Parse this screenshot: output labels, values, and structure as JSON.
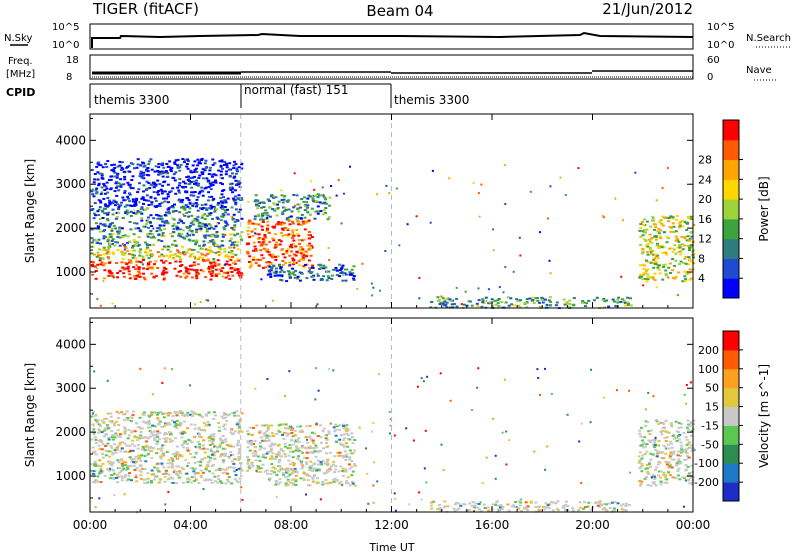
{
  "header": {
    "title_left": "TIGER (fitACF)",
    "title_center": "Beam 04",
    "title_right": "21/Jun/2012"
  },
  "panels": {
    "nsky_label": "N.Sky",
    "nsky_ticks": [
      "10^5",
      "10^0"
    ],
    "nsearch_label": "N.Search",
    "nsearch_ticks": [
      "10^5",
      "10^0"
    ],
    "freq_label": "Freq.",
    "freq_unit": "[MHz]",
    "freq_ticks": [
      "18",
      "8"
    ],
    "nave_label": "Nave",
    "nave_ticks": [
      "60",
      "0"
    ],
    "cpid_label": "CPID",
    "cpid_segments": [
      {
        "label": "themis 3300",
        "start": 0,
        "end": 6
      },
      {
        "label": "normal (fast) 151",
        "start": 6,
        "end": 12
      },
      {
        "label": "themis 3300",
        "start": 12,
        "end": 24
      }
    ]
  },
  "chart_data": [
    {
      "type": "heatmap",
      "title": "",
      "ylabel": "Slant Range [km]",
      "xlabel": "Time UT",
      "xlim": [
        0,
        24
      ],
      "ylim": [
        180,
        4600
      ],
      "x_ticks": [
        "00:00",
        "04:00",
        "08:00",
        "12:00",
        "16:00",
        "20:00",
        "00:00"
      ],
      "x_tick_values": [
        0,
        4,
        8,
        12,
        16,
        20,
        24
      ],
      "y_ticks": [
        1000,
        2000,
        3000,
        4000
      ],
      "colorbar": {
        "label": "Power [dB]",
        "ticks": [
          "4",
          "8",
          "12",
          "16",
          "20",
          "24",
          "28"
        ],
        "colors": [
          "#0000ff",
          "#1e4bd2",
          "#2d7d7d",
          "#3ca43c",
          "#a0d23c",
          "#ffd700",
          "#ffa500",
          "#ff5a00",
          "#ff0000"
        ]
      },
      "regions": [
        {
          "t0": 0,
          "t1": 6,
          "r0": 850,
          "r1": 1300,
          "level": 0.95
        },
        {
          "t0": 0,
          "t1": 6,
          "r0": 1300,
          "r1": 1600,
          "level": 0.6
        },
        {
          "t0": 0,
          "t1": 6,
          "r0": 1600,
          "r1": 2000,
          "level": 0.35
        },
        {
          "t0": 0,
          "t1": 6,
          "r0": 2000,
          "r1": 2500,
          "level": 0.25
        },
        {
          "t0": 0,
          "t1": 6,
          "r0": 2500,
          "r1": 3600,
          "level": 0.05
        },
        {
          "t0": 6.2,
          "t1": 8.8,
          "r0": 1100,
          "r1": 2200,
          "level": 0.85
        },
        {
          "t0": 6.5,
          "t1": 9.5,
          "r0": 2200,
          "r1": 2800,
          "level": 0.3
        },
        {
          "t0": 7.0,
          "t1": 10.5,
          "r0": 800,
          "r1": 1200,
          "level": 0.2
        },
        {
          "t0": 13.5,
          "t1": 21.5,
          "r0": 200,
          "r1": 450,
          "level": 0.35
        },
        {
          "t0": 21.8,
          "t1": 24,
          "r0": 800,
          "r1": 2300,
          "level": 0.55
        }
      ],
      "cpid_changes": [
        6,
        12
      ]
    },
    {
      "type": "heatmap",
      "title": "",
      "ylabel": "Slant Range [km]",
      "xlabel": "Time UT",
      "xlim": [
        0,
        24
      ],
      "ylim": [
        180,
        4600
      ],
      "x_ticks": [
        "00:00",
        "04:00",
        "08:00",
        "12:00",
        "16:00",
        "20:00",
        "00:00"
      ],
      "x_tick_values": [
        0,
        4,
        8,
        12,
        16,
        20,
        24
      ],
      "y_ticks": [
        1000,
        2000,
        3000,
        4000
      ],
      "colorbar": {
        "label": "Velocity [m s^-1]",
        "ticks": [
          "200",
          "100",
          "50",
          "15",
          "-15",
          "-50",
          "-100",
          "-200"
        ],
        "colors": [
          "#1e2dc8",
          "#1e78c8",
          "#2d8c50",
          "#5ac850",
          "#c8c8c8",
          "#e1c83c",
          "#ffa01e",
          "#ff5a00",
          "#ff0000"
        ]
      },
      "regions": [
        {
          "t0": 0,
          "t1": 6,
          "r0": 850,
          "r1": 2500,
          "level": 0.5
        },
        {
          "t0": 6.2,
          "t1": 10.5,
          "r0": 1100,
          "r1": 2200,
          "level": 0.5
        },
        {
          "t0": 7.0,
          "t1": 10.5,
          "r0": 800,
          "r1": 1200,
          "level": 0.5
        },
        {
          "t0": 13.5,
          "t1": 21.5,
          "r0": 200,
          "r1": 450,
          "level": 0.6
        },
        {
          "t0": 21.8,
          "t1": 24,
          "r0": 800,
          "r1": 2300,
          "level": 0.5
        }
      ],
      "cpid_changes": [
        6,
        12
      ]
    }
  ]
}
